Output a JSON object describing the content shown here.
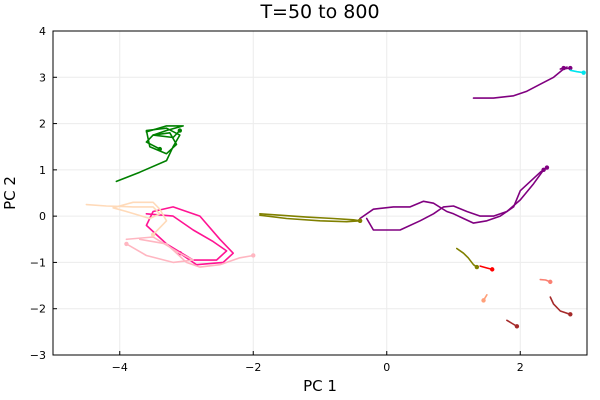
{
  "chart_data": {
    "type": "line",
    "title": "T=50 to 800",
    "xlabel": "PC 1",
    "ylabel": "PC 2",
    "xlim": [
      -5.0,
      3.0
    ],
    "ylim": [
      -3,
      4
    ],
    "xticks": [
      -4,
      -2,
      0,
      2
    ],
    "yticks": [
      -3,
      -2,
      -1,
      0,
      1,
      2,
      3,
      4
    ],
    "xtick_labels": [
      "−4",
      "−2",
      "0",
      "2"
    ],
    "ytick_labels": [
      "−3",
      "−2",
      "−1",
      "0",
      "1",
      "2",
      "3",
      "4"
    ],
    "grid": true,
    "legend": "none",
    "series": [
      {
        "color": "#800080",
        "points": [
          [
            1.3,
            2.55
          ],
          [
            1.6,
            2.55
          ],
          [
            1.9,
            2.6
          ],
          [
            2.1,
            2.7
          ],
          [
            2.3,
            2.85
          ],
          [
            2.5,
            3.0
          ],
          [
            2.65,
            3.18
          ],
          [
            2.75,
            3.2
          ]
        ]
      },
      {
        "color": "#800080",
        "points": [
          [
            2.7,
            3.22
          ],
          [
            2.6,
            3.18
          ],
          [
            2.65,
            3.2
          ]
        ]
      },
      {
        "color": "#00e5ee",
        "points": [
          [
            2.75,
            3.15
          ],
          [
            2.85,
            3.12
          ],
          [
            2.95,
            3.1
          ]
        ]
      },
      {
        "color": "#800080",
        "points": [
          [
            -0.4,
            -0.05
          ],
          [
            -0.2,
            0.15
          ],
          [
            0.1,
            0.2
          ],
          [
            0.35,
            0.2
          ],
          [
            0.55,
            0.32
          ],
          [
            0.7,
            0.28
          ],
          [
            0.9,
            0.1
          ],
          [
            1.0,
            0.05
          ],
          [
            1.15,
            -0.05
          ],
          [
            1.3,
            -0.15
          ],
          [
            1.5,
            -0.1
          ],
          [
            1.7,
            0.0
          ],
          [
            1.9,
            0.2
          ],
          [
            2.0,
            0.55
          ],
          [
            2.15,
            0.75
          ],
          [
            2.3,
            0.95
          ],
          [
            2.4,
            1.05
          ]
        ]
      },
      {
        "color": "#800080",
        "points": [
          [
            -0.3,
            -0.05
          ],
          [
            -0.2,
            -0.3
          ],
          [
            0.2,
            -0.3
          ],
          [
            0.5,
            -0.1
          ],
          [
            0.7,
            0.05
          ],
          [
            0.85,
            0.2
          ],
          [
            1.0,
            0.22
          ],
          [
            1.2,
            0.1
          ],
          [
            1.4,
            0.0
          ],
          [
            1.6,
            0.0
          ],
          [
            1.8,
            0.1
          ],
          [
            2.0,
            0.35
          ],
          [
            2.2,
            0.7
          ],
          [
            2.35,
            1.0
          ]
        ]
      },
      {
        "color": "#808000",
        "points": [
          [
            -1.9,
            0.05
          ],
          [
            -1.6,
            0.02
          ],
          [
            -1.2,
            -0.02
          ],
          [
            -0.8,
            -0.05
          ],
          [
            -0.5,
            -0.08
          ],
          [
            -0.4,
            -0.1
          ]
        ]
      },
      {
        "color": "#808000",
        "points": [
          [
            -1.9,
            0.02
          ],
          [
            -1.5,
            -0.05
          ],
          [
            -1.0,
            -0.1
          ],
          [
            -0.6,
            -0.12
          ],
          [
            -0.4,
            -0.1
          ]
        ]
      },
      {
        "color": "#808000",
        "points": [
          [
            1.05,
            -0.7
          ],
          [
            1.15,
            -0.8
          ],
          [
            1.22,
            -0.9
          ],
          [
            1.3,
            -1.05
          ],
          [
            1.35,
            -1.1
          ]
        ]
      },
      {
        "color": "#ff0000",
        "points": [
          [
            1.4,
            -1.08
          ],
          [
            1.5,
            -1.12
          ],
          [
            1.58,
            -1.15
          ]
        ]
      },
      {
        "color": "#008000",
        "points": [
          [
            -4.05,
            0.75
          ],
          [
            -3.7,
            0.95
          ],
          [
            -3.3,
            1.2
          ],
          [
            -3.2,
            1.5
          ],
          [
            -3.1,
            1.75
          ],
          [
            -3.3,
            1.9
          ],
          [
            -3.6,
            1.85
          ],
          [
            -3.55,
            1.5
          ],
          [
            -3.3,
            1.35
          ],
          [
            -3.15,
            1.55
          ],
          [
            -3.25,
            1.8
          ],
          [
            -3.5,
            1.75
          ],
          [
            -3.6,
            1.6
          ],
          [
            -3.4,
            1.45
          ]
        ]
      },
      {
        "color": "#008000",
        "points": [
          [
            -3.6,
            1.82
          ],
          [
            -3.3,
            1.95
          ],
          [
            -3.05,
            1.95
          ],
          [
            -3.3,
            1.85
          ],
          [
            -3.5,
            1.75
          ],
          [
            -3.2,
            1.7
          ],
          [
            -3.1,
            1.85
          ]
        ]
      },
      {
        "color": "#ff1493",
        "points": [
          [
            -3.6,
            0.05
          ],
          [
            -3.2,
            0.0
          ],
          [
            -2.9,
            -0.3
          ],
          [
            -2.6,
            -0.55
          ],
          [
            -2.4,
            -0.75
          ],
          [
            -2.55,
            -0.95
          ],
          [
            -2.9,
            -0.95
          ],
          [
            -3.3,
            -0.6
          ],
          [
            -3.6,
            -0.2
          ],
          [
            -3.5,
            0.1
          ],
          [
            -3.2,
            0.2
          ],
          [
            -2.8,
            0.0
          ],
          [
            -2.5,
            -0.5
          ],
          [
            -2.3,
            -0.8
          ],
          [
            -2.45,
            -1.0
          ],
          [
            -2.85,
            -1.05
          ],
          [
            -3.1,
            -0.8
          ]
        ]
      },
      {
        "color": "#ffb6c1",
        "points": [
          [
            -3.7,
            -0.5
          ],
          [
            -3.3,
            -0.6
          ],
          [
            -3.0,
            -1.0
          ],
          [
            -2.8,
            -1.1
          ],
          [
            -2.5,
            -1.05
          ],
          [
            -2.2,
            -0.9
          ],
          [
            -2.0,
            -0.85
          ]
        ]
      },
      {
        "color": "#ffb6c1",
        "points": [
          [
            -3.9,
            -0.5
          ],
          [
            -3.5,
            -0.45
          ],
          [
            -3.1,
            -0.8
          ],
          [
            -2.9,
            -0.95
          ],
          [
            -3.2,
            -1.0
          ],
          [
            -3.6,
            -0.85
          ],
          [
            -3.9,
            -0.6
          ]
        ]
      },
      {
        "color": "#ffdab9",
        "points": [
          [
            -4.5,
            0.25
          ],
          [
            -4.2,
            0.22
          ],
          [
            -3.8,
            0.2
          ],
          [
            -3.5,
            0.2
          ],
          [
            -3.4,
            0.05
          ],
          [
            -3.55,
            -0.05
          ],
          [
            -3.9,
            0.1
          ],
          [
            -4.1,
            0.18
          ],
          [
            -3.8,
            0.3
          ],
          [
            -3.5,
            0.3
          ],
          [
            -3.4,
            0.15
          ],
          [
            -3.3,
            -0.1
          ],
          [
            -3.5,
            -0.4
          ]
        ]
      },
      {
        "color": "#fa8072",
        "points": [
          [
            2.3,
            -1.37
          ],
          [
            2.38,
            -1.38
          ],
          [
            2.45,
            -1.42
          ]
        ]
      },
      {
        "color": "#ffa07a",
        "points": [
          [
            1.5,
            -1.7
          ],
          [
            1.45,
            -1.82
          ]
        ]
      },
      {
        "color": "#a52a2a",
        "points": [
          [
            1.8,
            -2.25
          ],
          [
            1.88,
            -2.32
          ],
          [
            1.95,
            -2.38
          ]
        ]
      },
      {
        "color": "#a52a2a",
        "points": [
          [
            2.45,
            -1.75
          ],
          [
            2.5,
            -1.9
          ],
          [
            2.6,
            -2.05
          ],
          [
            2.7,
            -2.1
          ],
          [
            2.75,
            -2.12
          ]
        ]
      }
    ]
  }
}
